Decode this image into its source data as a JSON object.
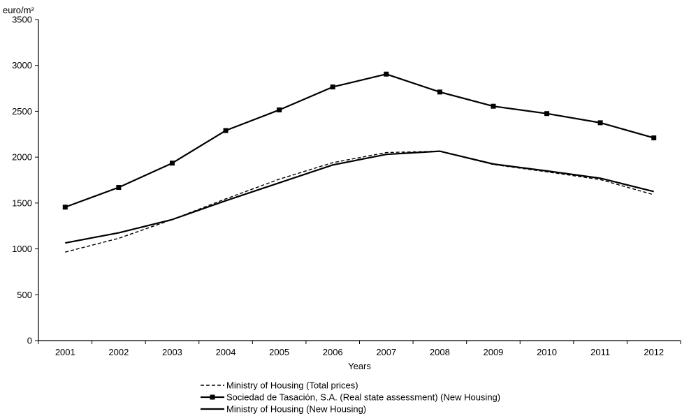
{
  "chart_data": {
    "type": "line",
    "title": "",
    "xlabel": "Years",
    "ylabel": "euro/m²",
    "categories": [
      "2001",
      "2002",
      "2003",
      "2004",
      "2005",
      "2006",
      "2007",
      "2008",
      "2009",
      "2010",
      "2011",
      "2012"
    ],
    "ylim": [
      0,
      3500
    ],
    "yticks": [
      0,
      500,
      1000,
      1500,
      2000,
      2500,
      3000,
      3500
    ],
    "grid": false,
    "legend_position": "bottom",
    "series": [
      {
        "name": "Ministry of Housing (Total prices)",
        "style": "dashed",
        "marker": "none",
        "values": [
          965,
          1115,
          1320,
          1545,
          1760,
          1940,
          2050,
          2065,
          1920,
          1840,
          1755,
          1590
        ]
      },
      {
        "name": "Sociedad de Tasación, S.A. (Real state assessment) (New Housing)",
        "style": "solid",
        "marker": "square",
        "values": [
          1455,
          1670,
          1935,
          2290,
          2515,
          2765,
          2905,
          2710,
          2555,
          2475,
          2375,
          2210
        ]
      },
      {
        "name": "Ministry of Housing (New Housing)",
        "style": "solid",
        "marker": "none",
        "values": [
          1065,
          1175,
          1320,
          1525,
          1720,
          1915,
          2030,
          2065,
          1925,
          1850,
          1770,
          1625
        ]
      }
    ],
    "colors": {
      "line": "#000000",
      "axis": "#000000"
    }
  }
}
